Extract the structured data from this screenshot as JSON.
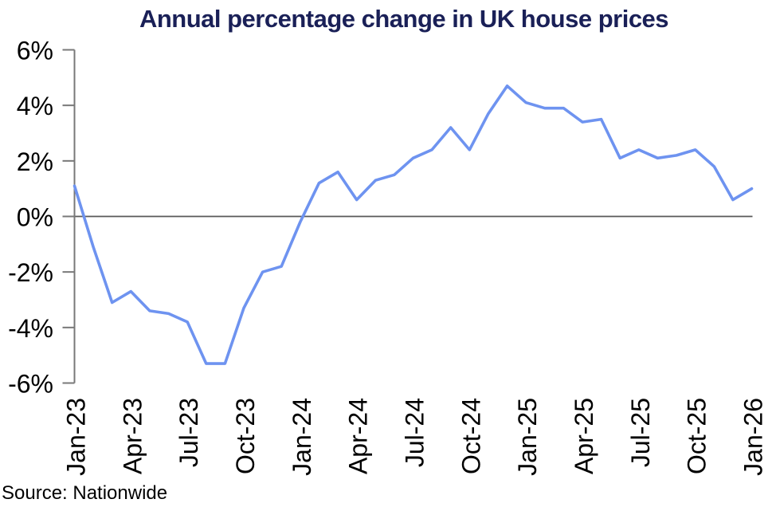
{
  "chart_data": {
    "type": "line",
    "title": "Annual percentage change in UK house prices",
    "source": "Source: Nationwide",
    "series_name": "Annual % change in UK house prices",
    "x": [
      "Jan-23",
      "Feb-23",
      "Mar-23",
      "Apr-23",
      "May-23",
      "Jun-23",
      "Jul-23",
      "Aug-23",
      "Sep-23",
      "Oct-23",
      "Nov-23",
      "Dec-23",
      "Jan-24",
      "Feb-24",
      "Mar-24",
      "Apr-24",
      "May-24",
      "Jun-24",
      "Jul-24",
      "Aug-24",
      "Sep-24",
      "Oct-24",
      "Nov-24",
      "Dec-24",
      "Jan-25",
      "Feb-25",
      "Mar-25",
      "Apr-25",
      "May-25",
      "Jun-25",
      "Jul-25",
      "Aug-25",
      "Sep-25",
      "Oct-25",
      "Nov-25",
      "Dec-25",
      "Jan-26"
    ],
    "values": [
      1.1,
      -1.1,
      -3.1,
      -2.7,
      -3.4,
      -3.5,
      -3.8,
      -5.3,
      -5.3,
      -3.3,
      -2.0,
      -1.8,
      -0.2,
      1.2,
      1.6,
      0.6,
      1.3,
      1.5,
      2.1,
      2.4,
      3.2,
      2.4,
      3.7,
      4.7,
      4.1,
      3.9,
      3.9,
      3.4,
      3.5,
      2.1,
      2.4,
      2.1,
      2.2,
      2.4,
      1.8,
      0.6,
      1.0
    ],
    "unit": "%",
    "ylim": [
      -6,
      6
    ],
    "ytick_values": [
      6,
      4,
      2,
      0,
      -2,
      -4,
      -6
    ],
    "ytick_labels": [
      "6%",
      "4%",
      "2%",
      "0%",
      "-2%",
      "-4%",
      "-6%"
    ],
    "xtick_labels": [
      "Jan-23",
      "Apr-23",
      "Jul-23",
      "Oct-23",
      "Jan-24",
      "Apr-24",
      "Jul-24",
      "Oct-24",
      "Jan-25",
      "Apr-25",
      "Jul-25",
      "Oct-25",
      "Jan-26"
    ],
    "xlabel": "",
    "ylabel": "",
    "grid": "zero-line-only",
    "legend": "none",
    "colors": {
      "line": "#6e93f0",
      "title": "#1a2057",
      "axis": "#787878",
      "zero_line": "#595959",
      "tick_label": "#000000",
      "background": "#ffffff"
    }
  }
}
